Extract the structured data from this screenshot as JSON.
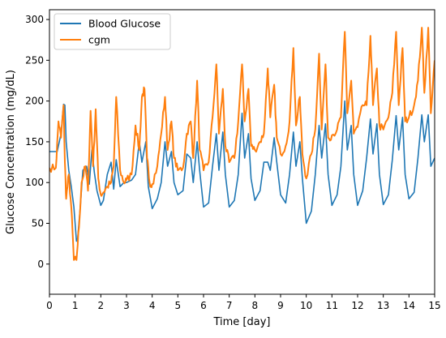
{
  "chart_data": {
    "type": "line",
    "title": "",
    "xlabel": "Time [day]",
    "ylabel": "Glucose Concentration (mg/dL)",
    "xlim": [
      0,
      15
    ],
    "ylim": [
      -37,
      312
    ],
    "xticks": [
      0,
      1,
      2,
      3,
      4,
      5,
      6,
      7,
      8,
      9,
      10,
      11,
      12,
      13,
      14,
      15
    ],
    "yticks": [
      0,
      50,
      100,
      150,
      200,
      250,
      300
    ],
    "grid": false,
    "legend_position": "top-left",
    "series": [
      {
        "name": "Blood Glucose",
        "color": "#1f77b4",
        "x": [
          0,
          0.3,
          0.45,
          0.55,
          0.6,
          0.65,
          0.75,
          0.85,
          0.95,
          1.05,
          1.1,
          1.2,
          1.3,
          1.45,
          1.55,
          1.65,
          1.75,
          1.85,
          2.0,
          2.1,
          2.25,
          2.4,
          2.5,
          2.6,
          2.75,
          2.9,
          3.0,
          3.2,
          3.35,
          3.5,
          3.6,
          3.75,
          3.85,
          4.0,
          4.2,
          4.35,
          4.5,
          4.6,
          4.75,
          4.85,
          5.0,
          5.2,
          5.35,
          5.5,
          5.6,
          5.75,
          5.85,
          6.0,
          6.2,
          6.35,
          6.5,
          6.6,
          6.75,
          6.85,
          7.0,
          7.2,
          7.35,
          7.5,
          7.6,
          7.75,
          7.85,
          8.0,
          8.2,
          8.35,
          8.5,
          8.6,
          8.75,
          8.85,
          9.0,
          9.2,
          9.35,
          9.5,
          9.6,
          9.75,
          9.85,
          10.0,
          10.2,
          10.35,
          10.5,
          10.6,
          10.75,
          10.85,
          11.0,
          11.2,
          11.35,
          11.5,
          11.6,
          11.75,
          11.85,
          12.0,
          12.2,
          12.35,
          12.5,
          12.6,
          12.75,
          12.85,
          13.0,
          13.2,
          13.35,
          13.5,
          13.6,
          13.75,
          13.85,
          14.0,
          14.2,
          14.35,
          14.5,
          14.6,
          14.75,
          14.85,
          15.0
        ],
        "values": [
          138,
          138,
          160,
          196,
          195,
          150,
          115,
          95,
          70,
          28,
          32,
          70,
          115,
          120,
          98,
          140,
          112,
          90,
          72,
          78,
          110,
          125,
          92,
          128,
          95,
          100,
          100,
          103,
          110,
          150,
          125,
          150,
          95,
          68,
          80,
          100,
          150,
          120,
          138,
          100,
          85,
          90,
          135,
          130,
          100,
          150,
          115,
          70,
          75,
          120,
          160,
          115,
          162,
          110,
          70,
          78,
          110,
          185,
          130,
          160,
          105,
          78,
          90,
          125,
          125,
          115,
          155,
          125,
          85,
          75,
          110,
          162,
          120,
          150,
          105,
          50,
          65,
          110,
          170,
          130,
          172,
          110,
          72,
          85,
          120,
          200,
          140,
          170,
          110,
          72,
          90,
          130,
          178,
          135,
          172,
          110,
          73,
          85,
          128,
          182,
          140,
          180,
          110,
          80,
          88,
          130,
          183,
          150,
          183,
          120,
          130
        ]
      },
      {
        "name": "cgm",
        "color": "#ff7f0e",
        "x": [
          0,
          0.25,
          0.35,
          0.45,
          0.55,
          0.6,
          0.65,
          0.75,
          0.85,
          0.95,
          1.05,
          1.15,
          1.25,
          1.4,
          1.5,
          1.6,
          1.7,
          1.8,
          1.9,
          2.0,
          2.1,
          2.25,
          2.4,
          2.5,
          2.6,
          2.75,
          2.9,
          3.0,
          3.2,
          3.35,
          3.5,
          3.6,
          3.7,
          3.8,
          3.9,
          4.0,
          4.2,
          4.35,
          4.5,
          4.6,
          4.75,
          4.85,
          5.0,
          5.2,
          5.35,
          5.5,
          5.6,
          5.75,
          5.85,
          6.0,
          6.2,
          6.35,
          6.5,
          6.6,
          6.75,
          6.85,
          7.0,
          7.2,
          7.35,
          7.5,
          7.6,
          7.75,
          7.85,
          8.0,
          8.2,
          8.35,
          8.5,
          8.6,
          8.75,
          8.85,
          9.0,
          9.2,
          9.35,
          9.5,
          9.6,
          9.75,
          9.85,
          10.0,
          10.2,
          10.35,
          10.5,
          10.6,
          10.75,
          10.85,
          11.0,
          11.2,
          11.35,
          11.5,
          11.6,
          11.75,
          11.85,
          12.0,
          12.2,
          12.35,
          12.5,
          12.6,
          12.75,
          12.85,
          13.0,
          13.2,
          13.35,
          13.5,
          13.6,
          13.75,
          13.85,
          14.0,
          14.2,
          14.35,
          14.5,
          14.6,
          14.75,
          14.85,
          15.0
        ],
        "values": [
          118,
          118,
          175,
          155,
          195,
          125,
          80,
          110,
          70,
          5,
          5,
          45,
          100,
          120,
          90,
          188,
          120,
          190,
          105,
          85,
          88,
          95,
          100,
          120,
          205,
          115,
          100,
          103,
          110,
          170,
          140,
          205,
          215,
          130,
          100,
          98,
          120,
          160,
          205,
          140,
          175,
          130,
          115,
          118,
          160,
          175,
          130,
          225,
          140,
          115,
          125,
          180,
          245,
          160,
          215,
          145,
          125,
          130,
          175,
          245,
          175,
          215,
          145,
          140,
          150,
          160,
          240,
          180,
          220,
          155,
          135,
          145,
          175,
          265,
          170,
          205,
          135,
          105,
          135,
          165,
          258,
          165,
          245,
          155,
          158,
          165,
          180,
          285,
          185,
          225,
          160,
          168,
          195,
          195,
          280,
          195,
          240,
          170,
          165,
          180,
          210,
          285,
          195,
          265,
          175,
          180,
          195,
          225,
          290,
          210,
          290,
          185,
          250
        ]
      }
    ]
  }
}
